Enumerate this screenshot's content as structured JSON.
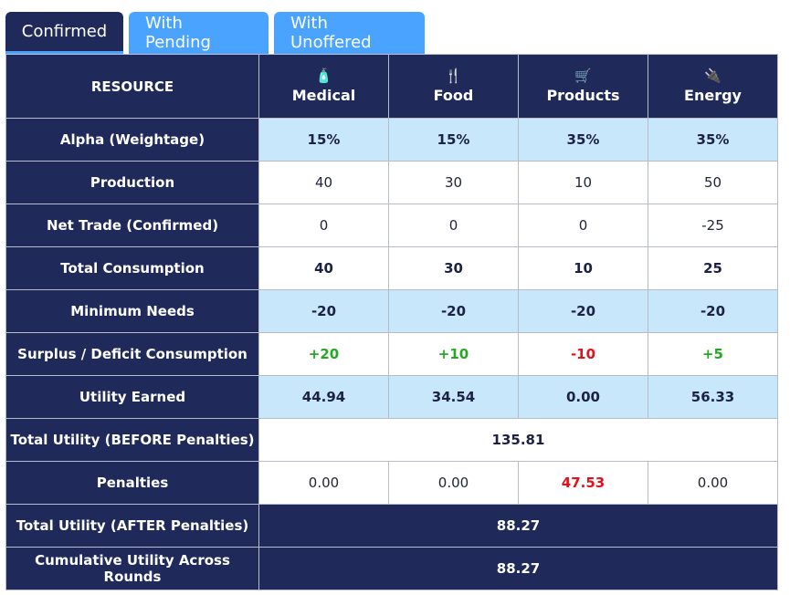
{
  "tabs": [
    "Confirmed",
    "With Pending",
    "With Unoffered"
  ],
  "header": {
    "resource_label": "RESOURCE",
    "columns": [
      {
        "name": "Medical",
        "icon": "medical-bottle-icon",
        "glyph": "🧴"
      },
      {
        "name": "Food",
        "icon": "fork-knife-icon",
        "glyph": "🍴"
      },
      {
        "name": "Products",
        "icon": "shopping-cart-icon",
        "glyph": "🛒"
      },
      {
        "name": "Energy",
        "icon": "plug-icon",
        "glyph": "🔌"
      }
    ]
  },
  "rows": {
    "alpha": {
      "label": "Alpha (Weightage)",
      "values": [
        "15%",
        "15%",
        "35%",
        "35%"
      ]
    },
    "production": {
      "label": "Production",
      "values": [
        "40",
        "30",
        "10",
        "50"
      ]
    },
    "net_trade": {
      "label": "Net Trade (Confirmed)",
      "values": [
        "0",
        "0",
        "0",
        "-25"
      ]
    },
    "total_consumption": {
      "label": "Total Consumption",
      "values": [
        "40",
        "30",
        "10",
        "25"
      ]
    },
    "minimum_needs": {
      "label": "Minimum Needs",
      "values": [
        "-20",
        "-20",
        "-20",
        "-20"
      ]
    },
    "surplus": {
      "label": "Surplus / Deficit Consumption",
      "values": [
        "+20",
        "+10",
        "-10",
        "+5"
      ]
    },
    "utility_earned": {
      "label": "Utility Earned",
      "values": [
        "44.94",
        "34.54",
        "0.00",
        "56.33"
      ]
    },
    "total_before": {
      "label": "Total Utility (BEFORE Penalties)",
      "value": "135.81"
    },
    "penalties": {
      "label": "Penalties",
      "values": [
        "0.00",
        "0.00",
        "47.53",
        "0.00"
      ]
    },
    "total_after": {
      "label": "Total Utility (AFTER Penalties)",
      "value": "88.27"
    },
    "cumulative": {
      "label": "Cumulative Utility Across Rounds",
      "value": "88.27"
    }
  },
  "colors": {
    "navy": "#1f2a5a",
    "tab_blue": "#4aa3ff",
    "light_blue": "#c9e7fb",
    "positive": "#27a824",
    "negative": "#e0121a"
  }
}
